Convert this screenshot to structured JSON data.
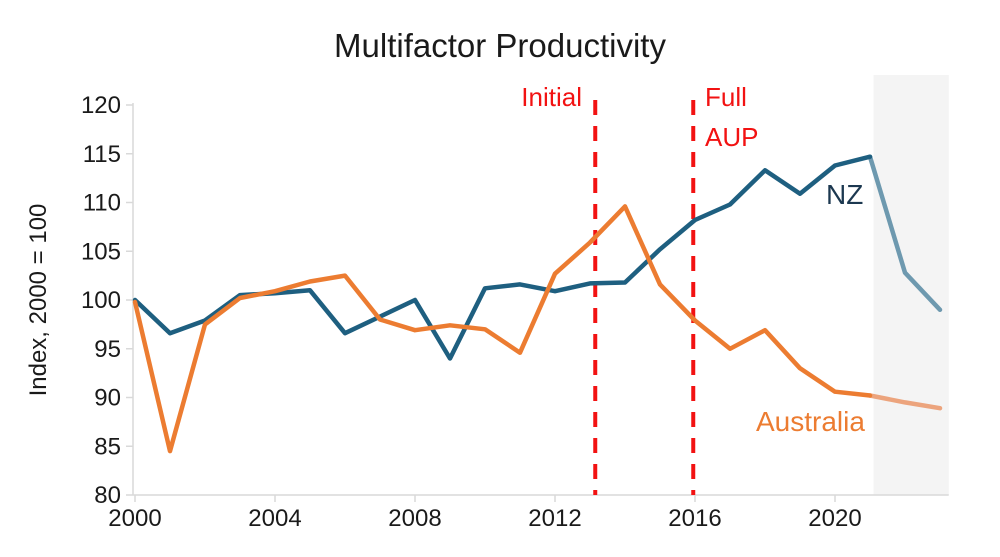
{
  "chart_data": {
    "type": "line",
    "title": "Multifactor Productivity",
    "xlabel": "",
    "ylabel": "Index, 2000 = 100",
    "ylim": [
      80,
      120
    ],
    "y_tick_step": 5,
    "xlim": [
      2000,
      2023.25
    ],
    "x_ticks": [
      2000,
      2004,
      2008,
      2012,
      2016,
      2020
    ],
    "grid": false,
    "legend_position": "inline-labels",
    "years": [
      2000,
      2001,
      2002,
      2003,
      2004,
      2005,
      2006,
      2007,
      2008,
      2009,
      2010,
      2011,
      2012,
      2013,
      2014,
      2015,
      2016,
      2017,
      2018,
      2019,
      2020,
      2021,
      2022,
      2023
    ],
    "series": [
      {
        "name": "NZ",
        "color": "#1e5f80",
        "faded_color": "#6e99af",
        "fade_from_year": 2021,
        "values": [
          100,
          96.6,
          97.9,
          100.5,
          100.7,
          101.0,
          96.6,
          98.3,
          100.0,
          94.0,
          101.2,
          101.6,
          100.9,
          101.7,
          101.8,
          105.2,
          108.2,
          109.8,
          113.3,
          110.9,
          113.8,
          114.7,
          102.8,
          99.0
        ]
      },
      {
        "name": "Australia",
        "color": "#ec7c31",
        "faded_color": "#eca47d",
        "fade_from_year": 2021,
        "values": [
          99.8,
          84.5,
          97.5,
          100.2,
          100.9,
          101.9,
          102.5,
          98.0,
          96.9,
          97.4,
          97.0,
          94.6,
          102.7,
          105.9,
          109.6,
          101.6,
          97.9,
          95.0,
          96.9,
          93.0,
          90.6,
          90.2,
          89.5,
          88.9
        ]
      }
    ],
    "reference_lines": [
      {
        "label": "Initial",
        "year": 2013.15
      },
      {
        "label": "Full AUP",
        "year": 2015.95
      }
    ],
    "annotations": {
      "initial_label": "Initial",
      "full_aup_lines": [
        "Full",
        "AUP"
      ],
      "nz_label": "NZ",
      "australia_label": "Australia"
    },
    "shaded_band": {
      "from_year": 2021.1,
      "to_year": 2023.25
    },
    "colors": {
      "reference_line": "#f21212",
      "axis": "#d9d9d9",
      "tick_text": "#1a1a1a",
      "nz_line": "#1e5f80",
      "nz_line_faded": "#6e99af",
      "australia_line": "#ec7c31",
      "australia_line_faded": "#eca47d",
      "nz_label_text": "#1c3850",
      "band": "#f4f4f4"
    }
  }
}
